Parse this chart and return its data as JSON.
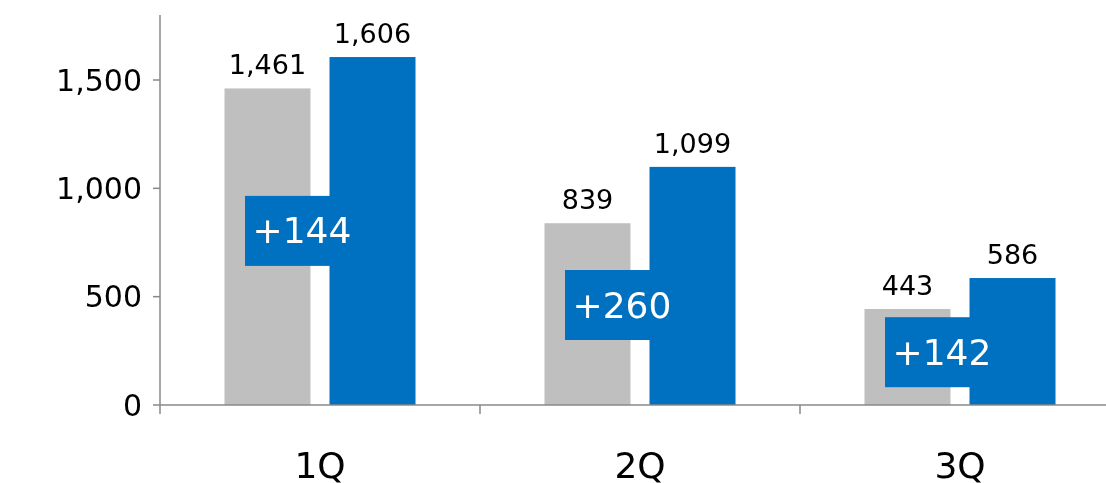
{
  "chart_data": {
    "type": "bar",
    "categories": [
      "1Q",
      "2Q",
      "3Q"
    ],
    "series": [
      {
        "color": "#bfbfbf",
        "values": [
          1461,
          839,
          443
        ],
        "value_labels": [
          "1,461",
          "839",
          "443"
        ]
      },
      {
        "color": "#0070c0",
        "values": [
          1606,
          1099,
          586
        ],
        "value_labels": [
          "1,606",
          "1,099",
          "586"
        ]
      }
    ],
    "ylim": [
      0,
      1800
    ],
    "yticks": [
      {
        "value": 0,
        "label": "0"
      },
      {
        "value": 500,
        "label": "500"
      },
      {
        "value": 1000,
        "label": "1,000"
      },
      {
        "value": 1500,
        "label": "1,500"
      }
    ],
    "annotations": [
      "+144",
      "+260",
      "+142"
    ]
  }
}
